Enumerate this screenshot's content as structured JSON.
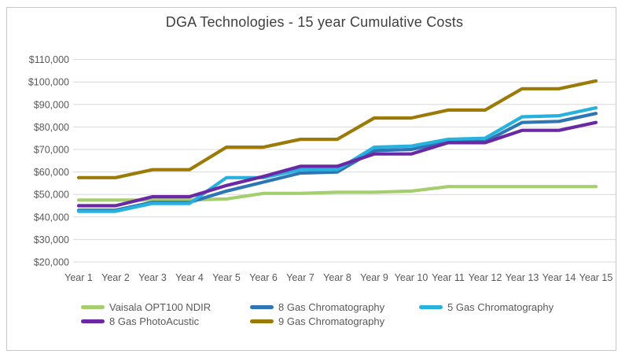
{
  "title": "DGA Technologies - 15 year Cumulative Costs",
  "chart_data": {
    "type": "line",
    "x": [
      "Year 1",
      "Year 2",
      "Year 3",
      "Year 4",
      "Year 5",
      "Year 6",
      "Year 7",
      "Year 8",
      "Year 9",
      "Year 10",
      "Year 11",
      "Year 12",
      "Year 13",
      "Year 14",
      "Year 15"
    ],
    "series": [
      {
        "name": "Vaisala OPT100 NDIR",
        "color": "#a5ce6f",
        "values": [
          47500,
          47500,
          47500,
          47500,
          48000,
          50500,
          50500,
          51000,
          51000,
          51500,
          53500,
          53500,
          53500,
          53500,
          53500
        ]
      },
      {
        "name": "8 Gas Chromatography",
        "color": "#2e75b6",
        "values": [
          43000,
          43000,
          46500,
          46500,
          51500,
          55500,
          59500,
          60000,
          69500,
          70000,
          73500,
          73500,
          82000,
          82500,
          86000
        ]
      },
      {
        "name": "5 Gas Chromatography",
        "color": "#27b1de",
        "values": [
          42500,
          42500,
          46000,
          46000,
          57500,
          57500,
          61000,
          61000,
          71000,
          71500,
          74500,
          75000,
          84500,
          85000,
          88500
        ]
      },
      {
        "name": "8 Gas PhotoAcustic",
        "color": "#6b28a3",
        "values": [
          45000,
          45000,
          49000,
          49000,
          54000,
          58000,
          62500,
          62500,
          68000,
          68000,
          73000,
          73000,
          78500,
          78500,
          82000
        ]
      },
      {
        "name": "9 Gas Chromatography",
        "color": "#9c7a08",
        "values": [
          57500,
          57500,
          61000,
          61000,
          71000,
          71000,
          74500,
          74500,
          84000,
          84000,
          87500,
          87500,
          97000,
          97000,
          100500
        ]
      }
    ],
    "y_ticks": [
      "$110,000",
      "$100,000",
      "$90,000",
      "$80,000",
      "$70,000",
      "$60,000",
      "$50,000",
      "$40,000",
      "$30,000",
      "$20,000"
    ],
    "ylim": [
      20000,
      110000
    ],
    "grid": true,
    "legend_position": "bottom",
    "colors": {
      "gridline": "#d9d9d9",
      "axis_text": "#595959",
      "title_text": "#404040",
      "frame_border": "#c9c7c5"
    }
  }
}
